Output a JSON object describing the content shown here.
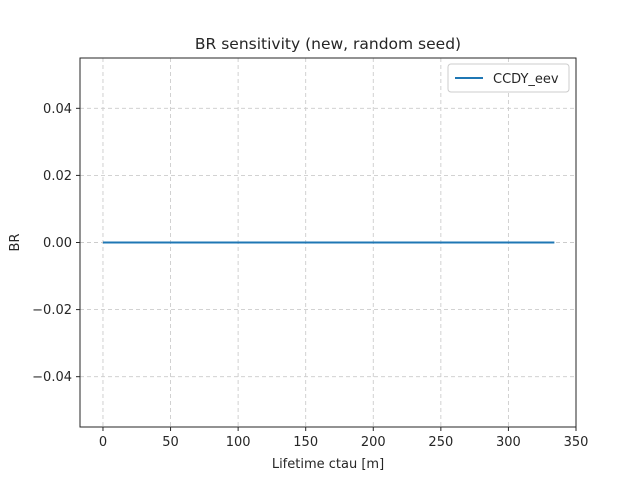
{
  "chart_data": {
    "type": "line",
    "title": "BR sensitivity (new, random seed)",
    "xlabel": "Lifetime ctau [m]",
    "ylabel": "BR",
    "xlim": [
      -17,
      350
    ],
    "ylim": [
      -0.055,
      0.055
    ],
    "xticks": [
      0,
      50,
      100,
      150,
      200,
      250,
      300,
      350
    ],
    "yticks": [
      -0.04,
      -0.02,
      0.0,
      0.02,
      0.04
    ],
    "xtick_labels": [
      "0",
      "50",
      "100",
      "150",
      "200",
      "250",
      "300",
      "350"
    ],
    "ytick_labels": [
      "−0.04",
      "−0.02",
      "0.00",
      "0.02",
      "0.04"
    ],
    "grid": true,
    "legend_position": "top-right",
    "series": [
      {
        "name": "CCDY_eev",
        "color": "#1f77b4",
        "x": [
          0,
          334
        ],
        "y": [
          0.0,
          0.0
        ]
      }
    ]
  }
}
